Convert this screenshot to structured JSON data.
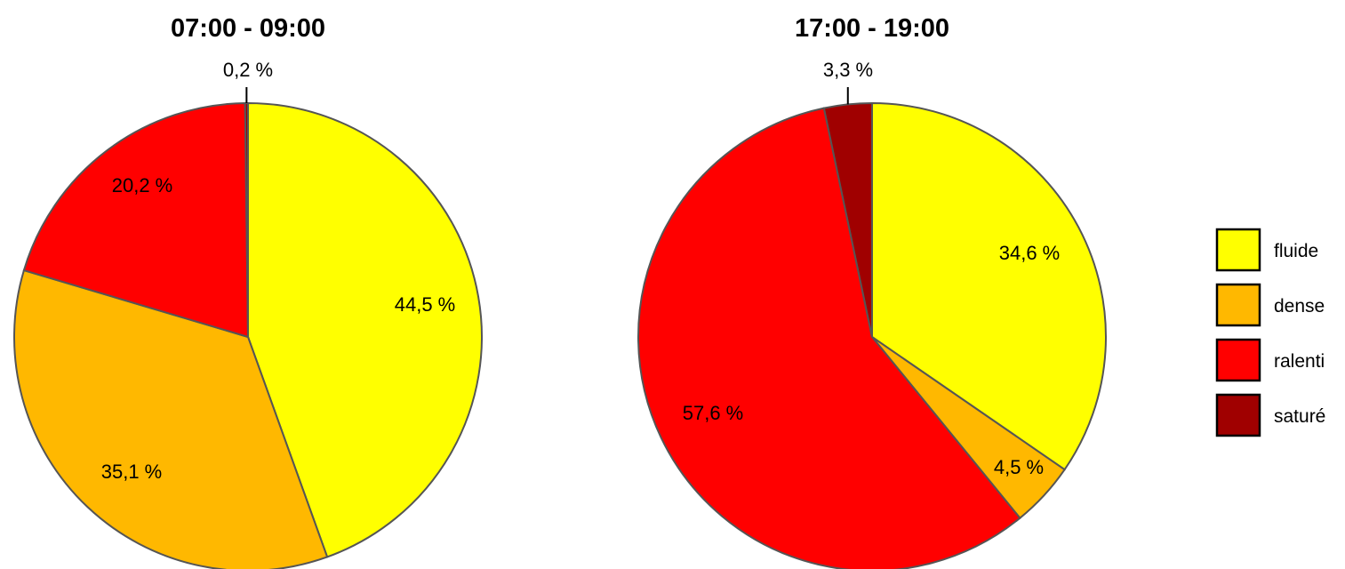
{
  "chart_data": [
    {
      "type": "pie",
      "title": "07:00 - 09:00",
      "categories": [
        "fluide",
        "dense",
        "ralenti",
        "saturé"
      ],
      "values": [
        44.5,
        35.1,
        20.2,
        0.2
      ],
      "labels": [
        "44,5 %",
        "35,1 %",
        "20,2 %",
        "0,2 %"
      ]
    },
    {
      "type": "pie",
      "title": "17:00 - 19:00",
      "categories": [
        "fluide",
        "dense",
        "ralenti",
        "saturé"
      ],
      "values": [
        34.6,
        4.5,
        57.6,
        3.3
      ],
      "labels": [
        "34,6 %",
        "4,5 %",
        "57,6 %",
        "3,3 %"
      ]
    }
  ],
  "legend": {
    "placement": "right",
    "items": [
      {
        "label": "fluide",
        "color": "#FFFF00"
      },
      {
        "label": "dense",
        "color": "#FFB800"
      },
      {
        "label": "ralenti",
        "color": "#FF0000"
      },
      {
        "label": "saturé",
        "color": "#A00000"
      }
    ]
  }
}
